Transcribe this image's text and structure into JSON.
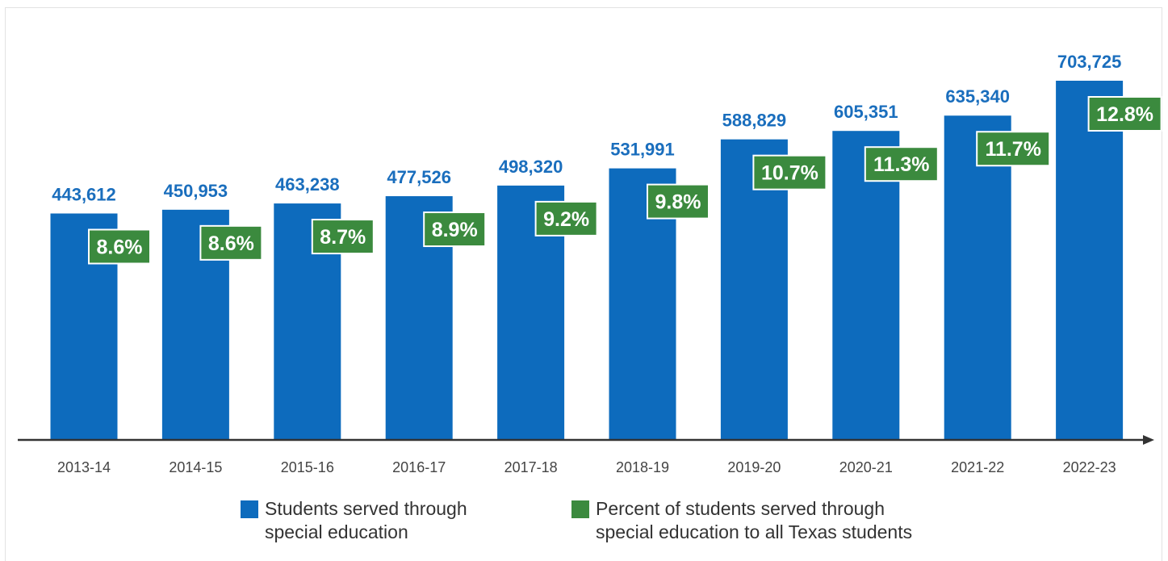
{
  "chart_data": {
    "type": "bar",
    "title": "",
    "xlabel": "",
    "ylabel": "",
    "categories": [
      "2013-14",
      "2014-15",
      "2015-16",
      "2016-17",
      "2017-18",
      "2018-19",
      "2019-20",
      "2020-21",
      "2021-22",
      "2022-23"
    ],
    "series": [
      {
        "name": "Students served through special education",
        "values": [
          443612,
          450953,
          463238,
          477526,
          498320,
          531991,
          588829,
          605351,
          635340,
          703725
        ],
        "labels": [
          "443,612",
          "450,953",
          "463,238",
          "477,526",
          "498,320",
          "531,991",
          "588,829",
          "605,351",
          "635,340",
          "703,725"
        ]
      },
      {
        "name": "Percent of students served through special education to all Texas students",
        "values": [
          8.6,
          8.6,
          8.7,
          8.9,
          9.2,
          9.8,
          10.7,
          11.3,
          11.7,
          12.8
        ],
        "labels": [
          "8.6%",
          "8.6%",
          "8.7%",
          "8.9%",
          "9.2%",
          "9.8%",
          "10.7%",
          "11.3%",
          "11.7%",
          "12.8%"
        ]
      }
    ],
    "ylim": [
      0,
      787000
    ],
    "grid": false,
    "legend_position": "bottom"
  },
  "legend": {
    "items": [
      {
        "line1": "Students served through",
        "line2": "special education"
      },
      {
        "line1": "Percent of students served through",
        "line2": "special education to all Texas students"
      }
    ]
  },
  "colors": {
    "bar": "#0d6bbd",
    "value_label": "#1a6ebd",
    "badge": "#3b8a3e",
    "axis": "#333333"
  }
}
